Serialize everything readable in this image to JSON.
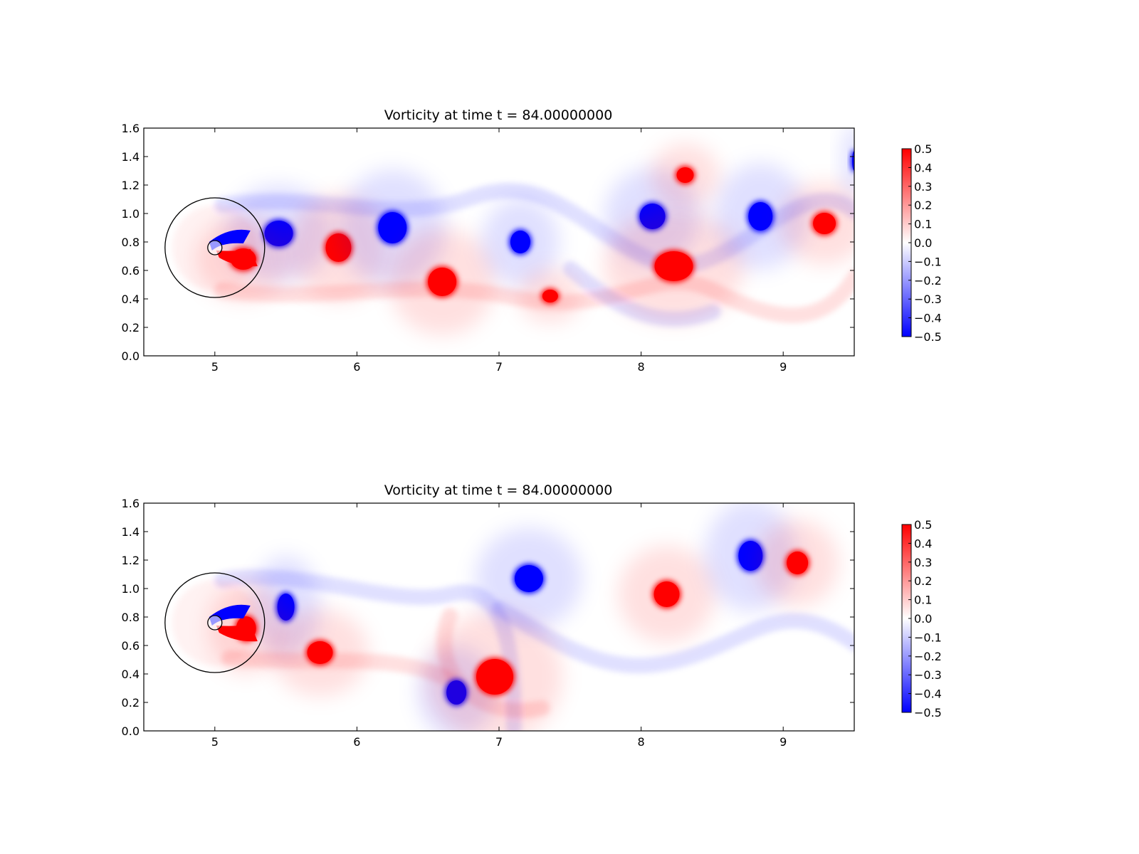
{
  "colors": {
    "positive": "#ff0000",
    "negative": "#0000ff",
    "zero": "#ffffff",
    "axis": "#000000"
  },
  "chart_data": [
    {
      "type": "heatmap",
      "title": "Vorticity at time t =    84.00000000",
      "xlabel": "",
      "ylabel": "",
      "xlim": [
        4.5,
        9.5
      ],
      "ylim": [
        0.0,
        1.6
      ],
      "x_ticks": [
        "5",
        "6",
        "7",
        "8",
        "9"
      ],
      "y_ticks": [
        "0.0",
        "0.2",
        "0.4",
        "0.6",
        "0.8",
        "1.0",
        "1.2",
        "1.4",
        "1.6"
      ],
      "colorbar": {
        "colormap": "bwr",
        "vmin": -0.5,
        "vmax": 0.5,
        "ticks": [
          "0.5",
          "0.4",
          "0.3",
          "0.2",
          "0.1",
          "0.0",
          "−0.1",
          "−0.2",
          "−0.3",
          "−0.4",
          "−0.5"
        ]
      },
      "grid": false,
      "vortices": [
        {
          "x": 5.45,
          "y": 0.86,
          "value": -0.5
        },
        {
          "x": 5.2,
          "y": 0.68,
          "value": 0.5
        },
        {
          "x": 5.87,
          "y": 0.76,
          "value": 0.5
        },
        {
          "x": 6.25,
          "y": 0.9,
          "value": -0.5
        },
        {
          "x": 6.6,
          "y": 0.52,
          "value": 0.5
        },
        {
          "x": 7.15,
          "y": 0.8,
          "value": -0.5
        },
        {
          "x": 7.36,
          "y": 0.42,
          "value": 0.5
        },
        {
          "x": 8.08,
          "y": 0.98,
          "value": -0.5
        },
        {
          "x": 8.23,
          "y": 0.63,
          "value": 0.5
        },
        {
          "x": 8.31,
          "y": 1.27,
          "value": 0.5
        },
        {
          "x": 8.84,
          "y": 0.98,
          "value": -0.5
        },
        {
          "x": 9.29,
          "y": 0.93,
          "value": 0.5
        },
        {
          "x": 9.5,
          "y": 1.37,
          "value": -0.5
        }
      ],
      "cylinder": {
        "x": 5.0,
        "y": 0.76,
        "outer_radius": 0.35,
        "inner_radius": 0.05
      }
    },
    {
      "type": "heatmap",
      "title": "Vorticity at time t =    84.00000000",
      "xlabel": "",
      "ylabel": "",
      "xlim": [
        4.5,
        9.5
      ],
      "ylim": [
        0.0,
        1.6
      ],
      "x_ticks": [
        "5",
        "6",
        "7",
        "8",
        "9"
      ],
      "y_ticks": [
        "0.0",
        "0.2",
        "0.4",
        "0.6",
        "0.8",
        "1.0",
        "1.2",
        "1.4",
        "1.6"
      ],
      "colorbar": {
        "colormap": "bwr",
        "vmin": -0.5,
        "vmax": 0.5,
        "ticks": [
          "0.5",
          "0.4",
          "0.3",
          "0.2",
          "0.1",
          "0.0",
          "−0.1",
          "−0.2",
          "−0.3",
          "−0.4",
          "−0.5"
        ]
      },
      "grid": false,
      "vortices": [
        {
          "x": 5.5,
          "y": 0.87,
          "value": -0.5
        },
        {
          "x": 5.22,
          "y": 0.72,
          "value": 0.5
        },
        {
          "x": 5.74,
          "y": 0.55,
          "value": 0.5
        },
        {
          "x": 6.7,
          "y": 0.27,
          "value": -0.5
        },
        {
          "x": 6.97,
          "y": 0.38,
          "value": 0.5
        },
        {
          "x": 7.21,
          "y": 1.07,
          "value": -0.5
        },
        {
          "x": 8.18,
          "y": 0.96,
          "value": 0.5
        },
        {
          "x": 8.77,
          "y": 1.23,
          "value": -0.5
        },
        {
          "x": 9.1,
          "y": 1.18,
          "value": 0.5
        }
      ],
      "cylinder": {
        "x": 5.0,
        "y": 0.76,
        "outer_radius": 0.35,
        "inner_radius": 0.05
      }
    }
  ]
}
